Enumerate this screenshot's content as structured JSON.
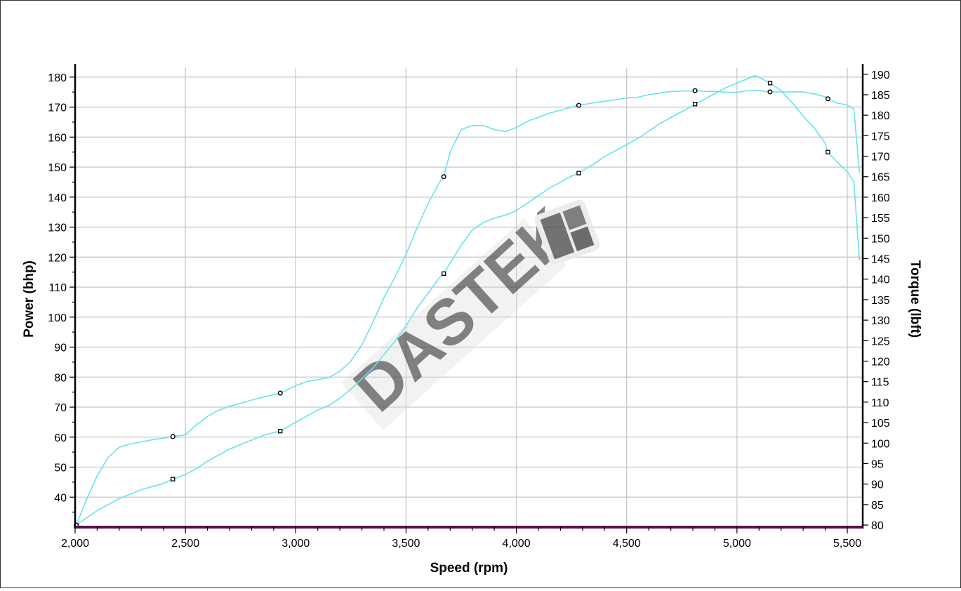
{
  "chart_data": {
    "type": "line",
    "xlabel": "Speed (rpm)",
    "ylabel": "Power (bhp)",
    "y2label": "Torque (lbft)",
    "xlim": [
      2000,
      5570
    ],
    "ylim": [
      30,
      183
    ],
    "y2lim": [
      79.5,
      191.5
    ],
    "grid": true,
    "x_ticks": [
      2000,
      2500,
      3000,
      3500,
      4000,
      4500,
      5000,
      5500
    ],
    "x_tick_labels": [
      "2,000",
      "2,500",
      "3,000",
      "3,500",
      "4,000",
      "4,500",
      "5,000",
      "5,500"
    ],
    "y_ticks": [
      40,
      50,
      60,
      70,
      80,
      90,
      100,
      110,
      120,
      130,
      140,
      150,
      160,
      170,
      180
    ],
    "y2_ticks": [
      80,
      85,
      90,
      95,
      100,
      105,
      110,
      115,
      120,
      125,
      130,
      135,
      140,
      145,
      150,
      155,
      160,
      165,
      170,
      175,
      180,
      185,
      190
    ],
    "line_color": "#66e3ee",
    "axis_color": "#000000",
    "baseline_color": "#5a0f4e",
    "watermark": "DASTEK",
    "series": [
      {
        "axis": "left",
        "marker": "square",
        "x": [
          2005,
          2020,
          2050,
          2100,
          2150,
          2200,
          2250,
          2300,
          2350,
          2400,
          2443,
          2500,
          2550,
          2600,
          2650,
          2700,
          2750,
          2800,
          2850,
          2900,
          2930,
          3000,
          3050,
          3100,
          3150,
          3200,
          3250,
          3300,
          3350,
          3400,
          3450,
          3500,
          3550,
          3600,
          3650,
          3671,
          3700,
          3750,
          3800,
          3850,
          3900,
          3950,
          4000,
          4050,
          4100,
          4150,
          4200,
          4250,
          4283,
          4350,
          4400,
          4450,
          4500,
          4550,
          4600,
          4650,
          4700,
          4750,
          4800,
          4810,
          4850,
          4900,
          4950,
          5000,
          5050,
          5080,
          5100,
          5150,
          5200,
          5250,
          5300,
          5350,
          5400,
          5412,
          5450,
          5500,
          5530,
          5555
        ],
        "values": [
          30.5,
          31.5,
          33,
          35.5,
          37.5,
          39.5,
          41,
          42.5,
          43.5,
          44.5,
          46,
          47.5,
          49.5,
          52,
          54,
          56,
          57.5,
          59,
          60.5,
          61.5,
          62,
          65,
          67,
          69,
          70.5,
          73,
          76,
          79.5,
          83,
          87.5,
          92,
          97,
          103,
          108,
          113,
          114.5,
          118,
          124,
          129,
          131.5,
          133,
          134,
          135.5,
          138,
          140.5,
          143,
          145,
          147,
          148,
          151,
          153.5,
          155.5,
          157.5,
          159.5,
          162,
          164.5,
          166.5,
          168.5,
          170.5,
          171,
          172.5,
          174.5,
          176.5,
          178,
          179.5,
          180.5,
          180,
          178,
          175.5,
          171.5,
          167,
          163,
          158,
          155,
          152,
          148.5,
          145,
          119
        ]
      },
      {
        "axis": "right",
        "marker": "circle",
        "x": [
          2005,
          2020,
          2050,
          2100,
          2150,
          2200,
          2250,
          2300,
          2350,
          2400,
          2443,
          2500,
          2550,
          2600,
          2650,
          2700,
          2750,
          2800,
          2850,
          2900,
          2930,
          3000,
          3050,
          3100,
          3150,
          3200,
          3250,
          3300,
          3350,
          3400,
          3450,
          3500,
          3550,
          3600,
          3650,
          3671,
          3700,
          3750,
          3800,
          3850,
          3900,
          3950,
          4000,
          4050,
          4100,
          4150,
          4200,
          4250,
          4283,
          4350,
          4400,
          4450,
          4500,
          4550,
          4600,
          4650,
          4700,
          4750,
          4800,
          4810,
          4850,
          4900,
          4950,
          5000,
          5050,
          5080,
          5100,
          5150,
          5200,
          5250,
          5300,
          5350,
          5400,
          5412,
          5450,
          5500,
          5530,
          5555
        ],
        "values": [
          80,
          82,
          86,
          92,
          96.5,
          99,
          99.8,
          100.3,
          100.8,
          101.2,
          101.6,
          102,
          104.5,
          106.5,
          108,
          109,
          109.7,
          110.5,
          111.2,
          111.8,
          112.2,
          114,
          115,
          115.5,
          116,
          117.5,
          120,
          124,
          129.5,
          135.5,
          140.5,
          146,
          152.5,
          158.5,
          163.5,
          165,
          171,
          176.5,
          177.5,
          177.5,
          176.5,
          176,
          177,
          178.5,
          179.5,
          180.5,
          181.2,
          182,
          182.4,
          183,
          183.4,
          183.8,
          184.2,
          184.4,
          185,
          185.4,
          185.8,
          185.9,
          185.9,
          186,
          185.8,
          185.8,
          185.6,
          185.6,
          186,
          186,
          186,
          185.7,
          185.7,
          185.7,
          185.7,
          185.2,
          184.5,
          184,
          183,
          182.5,
          181.5,
          166
        ]
      }
    ],
    "marker_x": [
      2005,
      2443,
      2930,
      3671,
      4283,
      4810,
      5150,
      5412
    ]
  }
}
